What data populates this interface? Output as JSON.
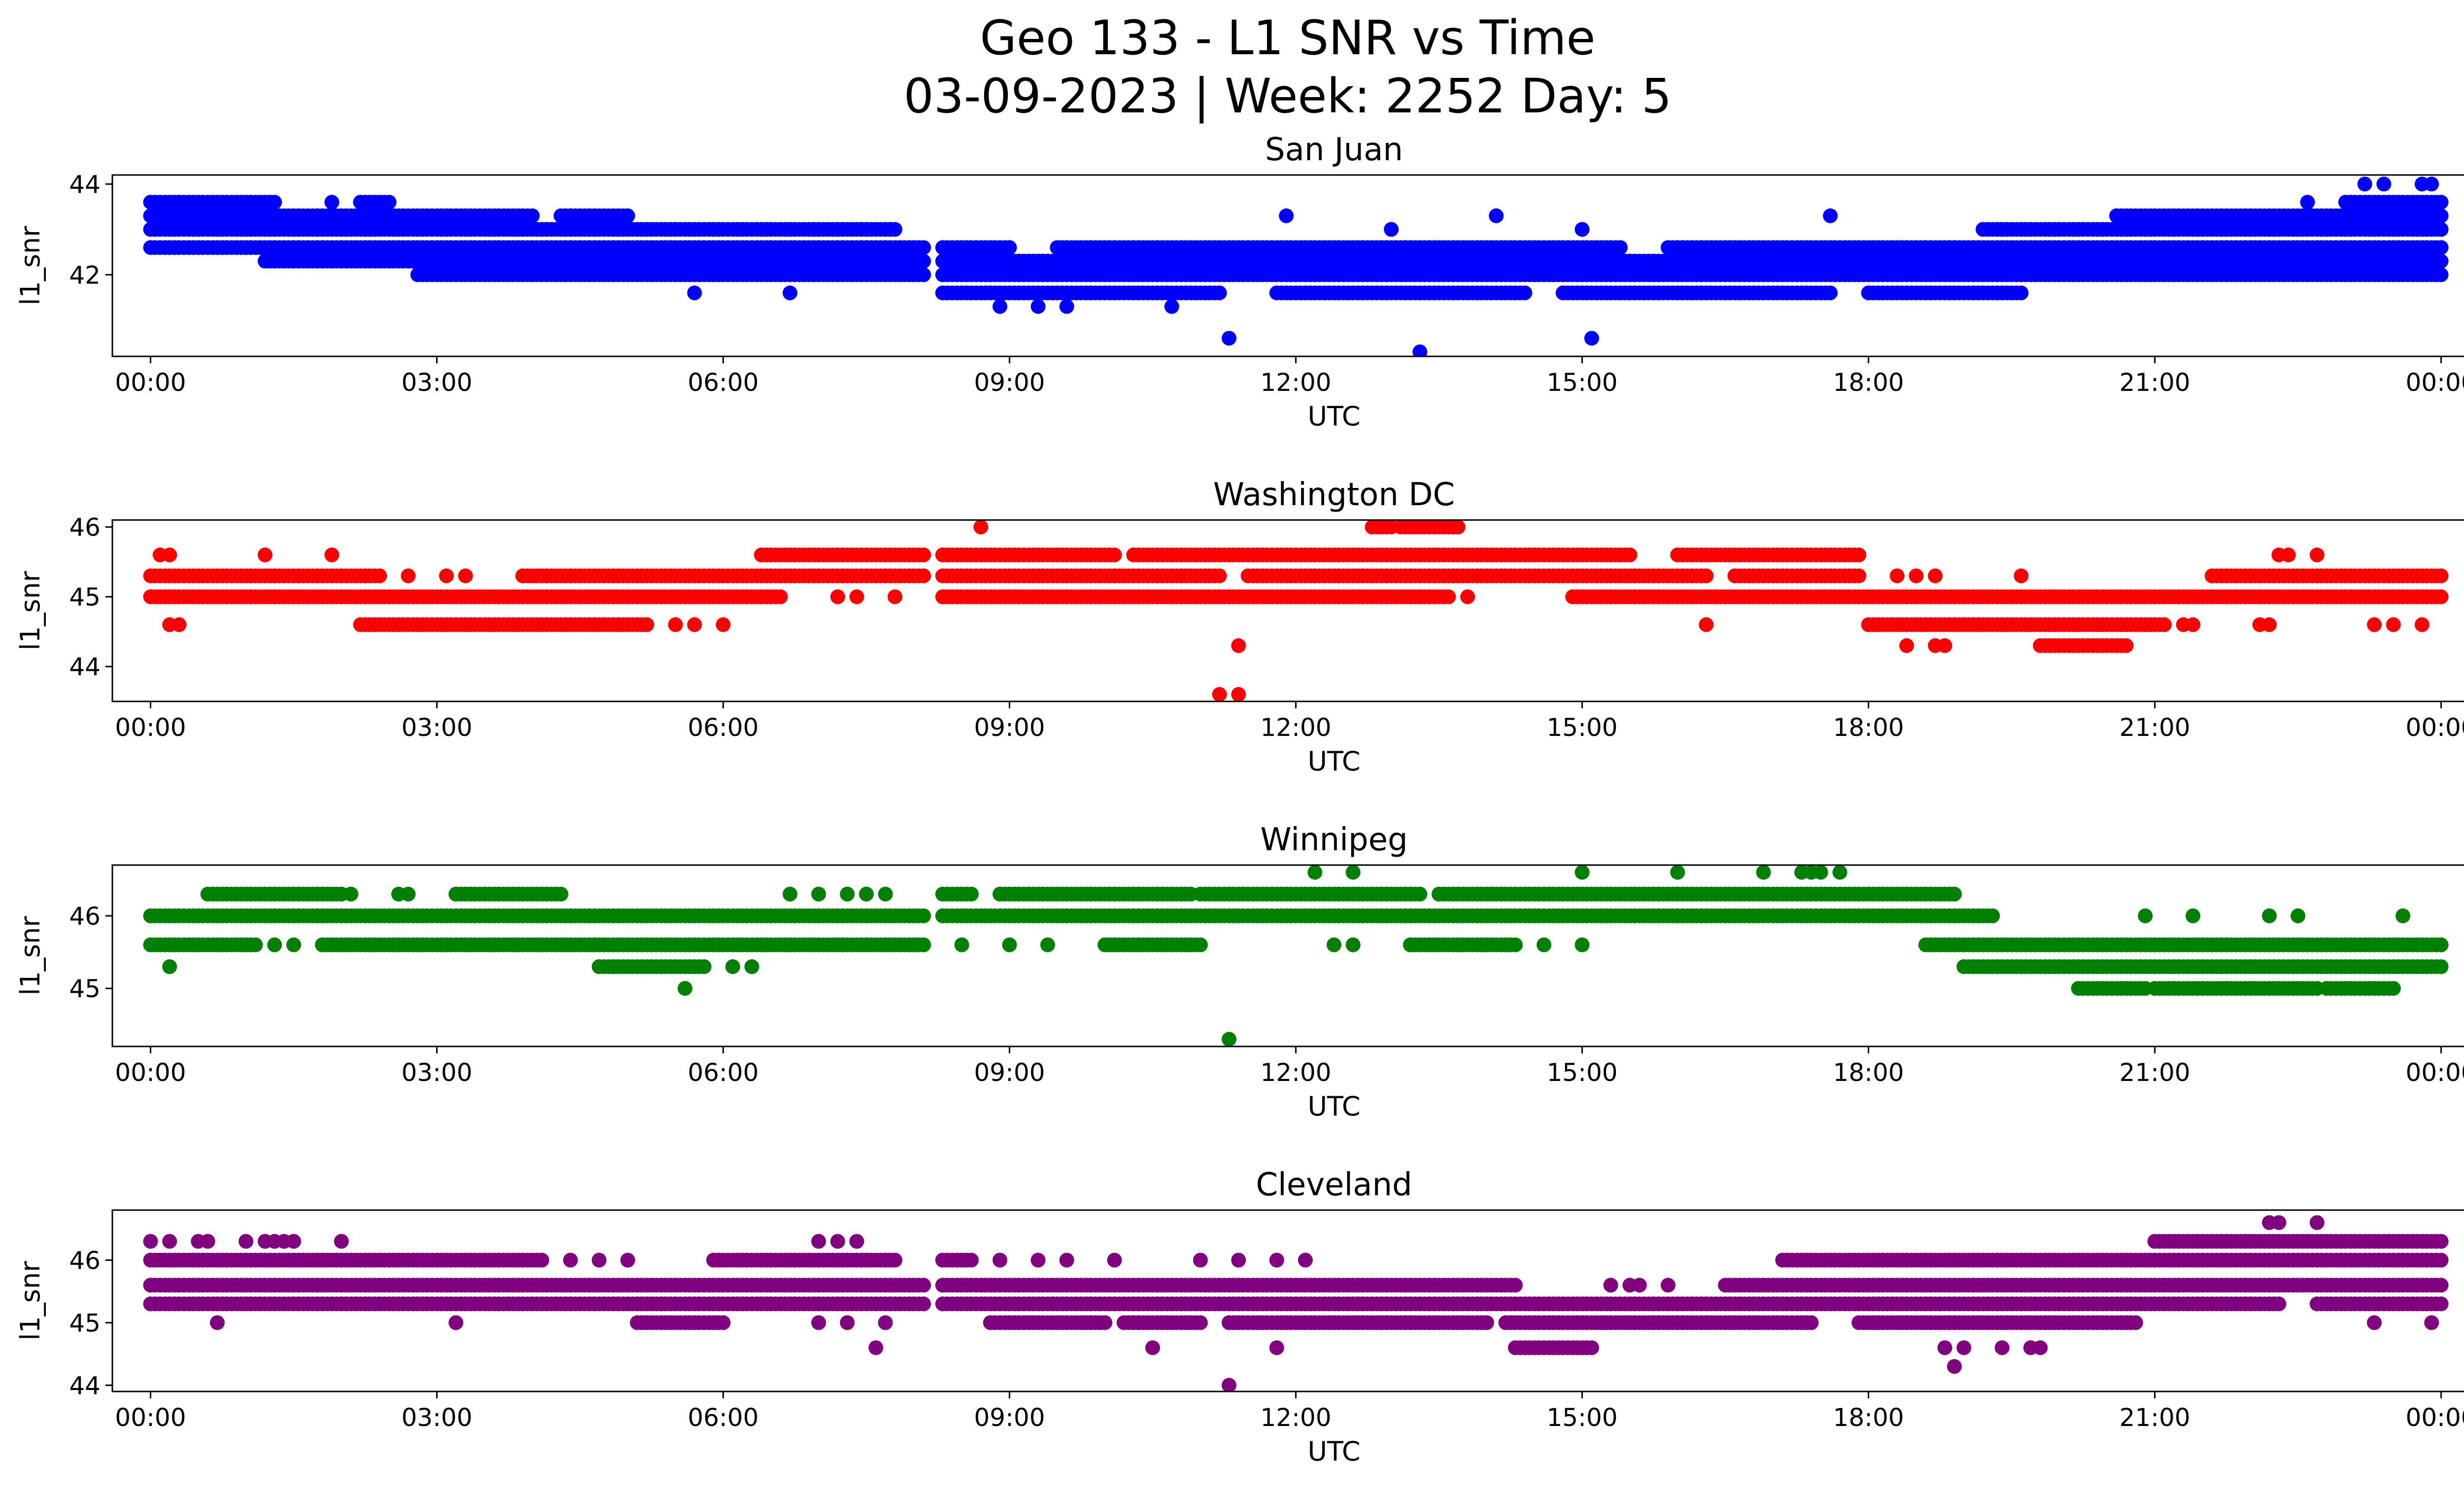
{
  "title_line1": "Geo 133 - L1 SNR vs Time",
  "title_line2": "03-09-2023 | Week: 2252 Day: 5",
  "chart_data": [
    {
      "type": "scatter",
      "title": "San Juan",
      "xlabel": "UTC",
      "ylabel": "l1_snr",
      "color": "#0000ff",
      "xlim": [
        -0.4,
        25.2
      ],
      "ylim": [
        40.2,
        44.2
      ],
      "xticks": [
        0,
        3,
        6,
        9,
        12,
        15,
        18,
        21,
        24
      ],
      "xtick_labels": [
        "00:00",
        "03:00",
        "06:00",
        "09:00",
        "12:00",
        "15:00",
        "18:00",
        "21:00",
        "00:00"
      ],
      "yticks": [
        42,
        44
      ],
      "ytick_labels": [
        "42",
        "44"
      ],
      "levels": [
        {
          "y": 43.6,
          "spans": [
            [
              0.0,
              1.3
            ],
            [
              2.2,
              2.5
            ],
            [
              23.0,
              24.0
            ]
          ]
        },
        {
          "y": 43.3,
          "spans": [
            [
              0.0,
              4.0
            ],
            [
              4.3,
              5.0
            ],
            [
              20.6,
              24.0
            ]
          ]
        },
        {
          "y": 43.0,
          "spans": [
            [
              0.0,
              7.8
            ],
            [
              19.2,
              24.0
            ]
          ]
        },
        {
          "y": 42.6,
          "spans": [
            [
              0.0,
              8.1
            ],
            [
              8.3,
              9.0
            ],
            [
              9.5,
              15.4
            ],
            [
              15.9,
              24.0
            ]
          ]
        },
        {
          "y": 42.3,
          "spans": [
            [
              1.2,
              8.1
            ],
            [
              8.3,
              24.0
            ]
          ]
        },
        {
          "y": 42.0,
          "spans": [
            [
              2.8,
              8.1
            ],
            [
              8.3,
              24.0
            ]
          ]
        },
        {
          "y": 41.6,
          "spans": [
            [
              8.3,
              11.2
            ],
            [
              11.8,
              14.4
            ],
            [
              14.8,
              17.6
            ],
            [
              18.0,
              19.6
            ]
          ]
        }
      ],
      "points": [
        {
          "x": 0.3,
          "y": 43.6
        },
        {
          "x": 1.9,
          "y": 43.6
        },
        {
          "x": 2.2,
          "y": 43.6
        },
        {
          "x": 4.4,
          "y": 43.3
        },
        {
          "x": 5.7,
          "y": 41.6
        },
        {
          "x": 6.7,
          "y": 41.6
        },
        {
          "x": 8.9,
          "y": 41.3
        },
        {
          "x": 9.3,
          "y": 41.3
        },
        {
          "x": 9.6,
          "y": 41.3
        },
        {
          "x": 10.7,
          "y": 41.3
        },
        {
          "x": 11.9,
          "y": 43.3
        },
        {
          "x": 13.0,
          "y": 43.0
        },
        {
          "x": 14.1,
          "y": 43.3
        },
        {
          "x": 15.0,
          "y": 43.0
        },
        {
          "x": 17.6,
          "y": 43.3
        },
        {
          "x": 20.6,
          "y": 43.3
        },
        {
          "x": 22.6,
          "y": 43.6
        },
        {
          "x": 23.2,
          "y": 44.0
        },
        {
          "x": 23.4,
          "y": 44.0
        },
        {
          "x": 23.8,
          "y": 44.0
        },
        {
          "x": 23.9,
          "y": 44.0
        },
        {
          "x": 23.5,
          "y": 42.6
        },
        {
          "x": 11.3,
          "y": 40.6
        },
        {
          "x": 13.3,
          "y": 40.3
        },
        {
          "x": 15.1,
          "y": 40.6
        }
      ]
    },
    {
      "type": "scatter",
      "title": "Washington DC",
      "xlabel": "UTC",
      "ylabel": "l1_snr",
      "color": "#ff0000",
      "xlim": [
        -0.4,
        25.2
      ],
      "ylim": [
        43.5,
        46.1
      ],
      "xticks": [
        0,
        3,
        6,
        9,
        12,
        15,
        18,
        21,
        24
      ],
      "xtick_labels": [
        "00:00",
        "03:00",
        "06:00",
        "09:00",
        "12:00",
        "15:00",
        "18:00",
        "21:00",
        "00:00"
      ],
      "yticks": [
        44,
        45,
        46
      ],
      "ytick_labels": [
        "44",
        "45",
        "46"
      ],
      "levels": [
        {
          "y": 46.0,
          "spans": [
            [
              12.8,
              13.0
            ],
            [
              13.1,
              13.7
            ]
          ]
        },
        {
          "y": 45.6,
          "spans": [
            [
              6.4,
              8.1
            ],
            [
              8.3,
              10.1
            ],
            [
              10.3,
              15.5
            ],
            [
              16.0,
              17.9
            ]
          ]
        },
        {
          "y": 45.3,
          "spans": [
            [
              0.0,
              2.4
            ],
            [
              3.9,
              8.1
            ],
            [
              8.3,
              11.2
            ],
            [
              11.5,
              16.3
            ],
            [
              16.6,
              17.9
            ],
            [
              21.6,
              24.0
            ]
          ]
        },
        {
          "y": 45.0,
          "spans": [
            [
              0.0,
              6.6
            ],
            [
              8.3,
              13.6
            ],
            [
              14.9,
              24.0
            ]
          ]
        },
        {
          "y": 44.6,
          "spans": [
            [
              2.2,
              5.2
            ],
            [
              18.0,
              21.1
            ]
          ]
        },
        {
          "y": 44.3,
          "spans": [
            [
              19.8,
              20.7
            ]
          ]
        }
      ],
      "points": [
        {
          "x": 0.1,
          "y": 45.6
        },
        {
          "x": 0.2,
          "y": 45.6
        },
        {
          "x": 1.2,
          "y": 45.6
        },
        {
          "x": 1.9,
          "y": 45.6
        },
        {
          "x": 0.2,
          "y": 44.6
        },
        {
          "x": 0.3,
          "y": 44.6
        },
        {
          "x": 2.7,
          "y": 45.3
        },
        {
          "x": 3.1,
          "y": 45.3
        },
        {
          "x": 3.3,
          "y": 45.3
        },
        {
          "x": 5.5,
          "y": 44.6
        },
        {
          "x": 5.7,
          "y": 44.6
        },
        {
          "x": 6.0,
          "y": 44.6
        },
        {
          "x": 7.2,
          "y": 45.0
        },
        {
          "x": 7.4,
          "y": 45.0
        },
        {
          "x": 7.8,
          "y": 45.0
        },
        {
          "x": 8.7,
          "y": 46.0
        },
        {
          "x": 8.6,
          "y": 45.0
        },
        {
          "x": 11.3,
          "y": 45.0
        },
        {
          "x": 11.6,
          "y": 45.0
        },
        {
          "x": 11.7,
          "y": 45.0
        },
        {
          "x": 11.9,
          "y": 45.0
        },
        {
          "x": 12.3,
          "y": 45.0
        },
        {
          "x": 12.6,
          "y": 45.0
        },
        {
          "x": 13.8,
          "y": 45.0
        },
        {
          "x": 16.3,
          "y": 44.6
        },
        {
          "x": 18.4,
          "y": 44.3
        },
        {
          "x": 18.7,
          "y": 44.3
        },
        {
          "x": 18.8,
          "y": 44.3
        },
        {
          "x": 18.3,
          "y": 45.3
        },
        {
          "x": 18.5,
          "y": 45.3
        },
        {
          "x": 18.7,
          "y": 45.3
        },
        {
          "x": 19.6,
          "y": 45.3
        },
        {
          "x": 19.9,
          "y": 44.3
        },
        {
          "x": 21.3,
          "y": 44.6
        },
        {
          "x": 21.4,
          "y": 44.6
        },
        {
          "x": 22.1,
          "y": 44.6
        },
        {
          "x": 22.2,
          "y": 44.6
        },
        {
          "x": 22.3,
          "y": 45.6
        },
        {
          "x": 22.4,
          "y": 45.6
        },
        {
          "x": 22.7,
          "y": 45.6
        },
        {
          "x": 23.3,
          "y": 44.6
        },
        {
          "x": 23.5,
          "y": 44.6
        },
        {
          "x": 23.8,
          "y": 44.6
        },
        {
          "x": 11.4,
          "y": 44.3
        },
        {
          "x": 11.2,
          "y": 43.6
        },
        {
          "x": 11.4,
          "y": 43.6
        }
      ]
    },
    {
      "type": "scatter",
      "title": "Winnipeg",
      "xlabel": "UTC",
      "ylabel": "l1_snr",
      "color": "#008000",
      "xlim": [
        -0.4,
        25.2
      ],
      "ylim": [
        44.2,
        46.7
      ],
      "xticks": [
        0,
        3,
        6,
        9,
        12,
        15,
        18,
        21,
        24
      ],
      "xtick_labels": [
        "00:00",
        "03:00",
        "06:00",
        "09:00",
        "12:00",
        "15:00",
        "18:00",
        "21:00",
        "00:00"
      ],
      "yticks": [
        45,
        46
      ],
      "ytick_labels": [
        "45",
        "46"
      ],
      "levels": [
        {
          "y": 46.3,
          "spans": [
            [
              0.6,
              2.0
            ],
            [
              3.2,
              4.3
            ],
            [
              8.3,
              8.6
            ],
            [
              8.9,
              10.9
            ],
            [
              11.0,
              13.3
            ],
            [
              13.5,
              18.9
            ]
          ]
        },
        {
          "y": 46.0,
          "spans": [
            [
              0.0,
              8.1
            ],
            [
              8.3,
              19.3
            ]
          ]
        },
        {
          "y": 45.6,
          "spans": [
            [
              0.0,
              1.1
            ],
            [
              1.8,
              8.1
            ],
            [
              10.0,
              11.0
            ],
            [
              13.2,
              14.3
            ],
            [
              18.6,
              24.0
            ]
          ]
        },
        {
          "y": 45.3,
          "spans": [
            [
              4.7,
              5.8
            ],
            [
              19.0,
              24.0
            ]
          ]
        },
        {
          "y": 45.0,
          "spans": [
            [
              20.2,
              20.9
            ],
            [
              21.0,
              22.7
            ],
            [
              22.8,
              23.5
            ]
          ]
        }
      ],
      "points": [
        {
          "x": 0.2,
          "y": 45.3
        },
        {
          "x": 1.3,
          "y": 45.6
        },
        {
          "x": 1.5,
          "y": 45.6
        },
        {
          "x": 2.1,
          "y": 46.3
        },
        {
          "x": 2.6,
          "y": 46.3
        },
        {
          "x": 2.7,
          "y": 46.3
        },
        {
          "x": 5.6,
          "y": 45.0
        },
        {
          "x": 6.1,
          "y": 45.3
        },
        {
          "x": 6.3,
          "y": 45.3
        },
        {
          "x": 6.7,
          "y": 46.3
        },
        {
          "x": 7.0,
          "y": 46.3
        },
        {
          "x": 7.3,
          "y": 46.3
        },
        {
          "x": 7.5,
          "y": 46.3
        },
        {
          "x": 7.7,
          "y": 46.3
        },
        {
          "x": 8.5,
          "y": 45.6
        },
        {
          "x": 9.0,
          "y": 45.6
        },
        {
          "x": 9.4,
          "y": 45.6
        },
        {
          "x": 12.2,
          "y": 46.6
        },
        {
          "x": 12.6,
          "y": 46.6
        },
        {
          "x": 12.4,
          "y": 45.6
        },
        {
          "x": 12.6,
          "y": 45.6
        },
        {
          "x": 14.6,
          "y": 45.6
        },
        {
          "x": 15.0,
          "y": 45.6
        },
        {
          "x": 15.0,
          "y": 46.6
        },
        {
          "x": 16.0,
          "y": 46.6
        },
        {
          "x": 16.9,
          "y": 46.6
        },
        {
          "x": 17.3,
          "y": 46.6
        },
        {
          "x": 17.4,
          "y": 46.6
        },
        {
          "x": 17.5,
          "y": 46.6
        },
        {
          "x": 17.7,
          "y": 46.6
        },
        {
          "x": 20.9,
          "y": 46.0
        },
        {
          "x": 21.4,
          "y": 46.0
        },
        {
          "x": 22.2,
          "y": 46.0
        },
        {
          "x": 22.5,
          "y": 46.0
        },
        {
          "x": 23.6,
          "y": 46.0
        },
        {
          "x": 11.3,
          "y": 44.3
        }
      ]
    },
    {
      "type": "scatter",
      "title": "Cleveland",
      "xlabel": "UTC",
      "ylabel": "l1_snr",
      "color": "#800080",
      "xlim": [
        -0.4,
        25.2
      ],
      "ylim": [
        43.9,
        46.8
      ],
      "xticks": [
        0,
        3,
        6,
        9,
        12,
        15,
        18,
        21,
        24
      ],
      "xtick_labels": [
        "00:00",
        "03:00",
        "06:00",
        "09:00",
        "12:00",
        "15:00",
        "18:00",
        "21:00",
        "00:00"
      ],
      "yticks": [
        44,
        45,
        46
      ],
      "ytick_labels": [
        "44",
        "45",
        "46"
      ],
      "levels": [
        {
          "y": 46.3,
          "spans": [
            [
              21.0,
              24.0
            ]
          ]
        },
        {
          "y": 46.0,
          "spans": [
            [
              0.0,
              4.1
            ],
            [
              5.9,
              7.8
            ],
            [
              8.3,
              8.6
            ],
            [
              17.1,
              24.0
            ]
          ]
        },
        {
          "y": 45.6,
          "spans": [
            [
              0.0,
              8.1
            ],
            [
              8.3,
              14.3
            ],
            [
              16.5,
              24.0
            ]
          ]
        },
        {
          "y": 45.3,
          "spans": [
            [
              0.0,
              8.1
            ],
            [
              8.3,
              18.2
            ],
            [
              18.2,
              22.3
            ],
            [
              22.7,
              24.0
            ]
          ]
        },
        {
          "y": 45.0,
          "spans": [
            [
              5.1,
              6.0
            ],
            [
              8.8,
              10.0
            ],
            [
              10.2,
              11.0
            ],
            [
              11.3,
              14.0
            ],
            [
              14.2,
              17.4
            ],
            [
              17.9,
              20.8
            ]
          ]
        },
        {
          "y": 44.6,
          "spans": [
            [
              14.3,
              15.1
            ]
          ]
        }
      ],
      "points": [
        {
          "x": 0.0,
          "y": 46.3
        },
        {
          "x": 0.2,
          "y": 46.3
        },
        {
          "x": 0.5,
          "y": 46.3
        },
        {
          "x": 0.6,
          "y": 46.3
        },
        {
          "x": 1.0,
          "y": 46.3
        },
        {
          "x": 1.2,
          "y": 46.3
        },
        {
          "x": 1.3,
          "y": 46.3
        },
        {
          "x": 1.4,
          "y": 46.3
        },
        {
          "x": 1.5,
          "y": 46.3
        },
        {
          "x": 2.0,
          "y": 46.3
        },
        {
          "x": 0.7,
          "y": 45.0
        },
        {
          "x": 3.2,
          "y": 45.0
        },
        {
          "x": 4.4,
          "y": 46.0
        },
        {
          "x": 4.7,
          "y": 46.0
        },
        {
          "x": 5.0,
          "y": 46.0
        },
        {
          "x": 7.0,
          "y": 46.3
        },
        {
          "x": 7.2,
          "y": 46.3
        },
        {
          "x": 7.4,
          "y": 46.3
        },
        {
          "x": 7.0,
          "y": 45.0
        },
        {
          "x": 7.3,
          "y": 45.0
        },
        {
          "x": 7.6,
          "y": 44.6
        },
        {
          "x": 7.7,
          "y": 45.0
        },
        {
          "x": 8.9,
          "y": 46.0
        },
        {
          "x": 9.3,
          "y": 46.0
        },
        {
          "x": 9.6,
          "y": 46.0
        },
        {
          "x": 10.1,
          "y": 46.0
        },
        {
          "x": 10.5,
          "y": 44.6
        },
        {
          "x": 11.0,
          "y": 46.0
        },
        {
          "x": 11.4,
          "y": 46.0
        },
        {
          "x": 11.8,
          "y": 46.0
        },
        {
          "x": 12.1,
          "y": 46.0
        },
        {
          "x": 11.8,
          "y": 44.6
        },
        {
          "x": 15.3,
          "y": 45.6
        },
        {
          "x": 15.5,
          "y": 45.6
        },
        {
          "x": 15.6,
          "y": 45.6
        },
        {
          "x": 15.9,
          "y": 45.6
        },
        {
          "x": 18.8,
          "y": 44.6
        },
        {
          "x": 19.0,
          "y": 44.6
        },
        {
          "x": 18.9,
          "y": 44.3
        },
        {
          "x": 19.4,
          "y": 44.6
        },
        {
          "x": 19.7,
          "y": 44.6
        },
        {
          "x": 19.8,
          "y": 44.6
        },
        {
          "x": 22.2,
          "y": 46.6
        },
        {
          "x": 22.3,
          "y": 46.6
        },
        {
          "x": 22.7,
          "y": 46.6
        },
        {
          "x": 23.3,
          "y": 45.0
        },
        {
          "x": 23.9,
          "y": 45.0
        },
        {
          "x": 11.3,
          "y": 44.0
        }
      ]
    }
  ]
}
